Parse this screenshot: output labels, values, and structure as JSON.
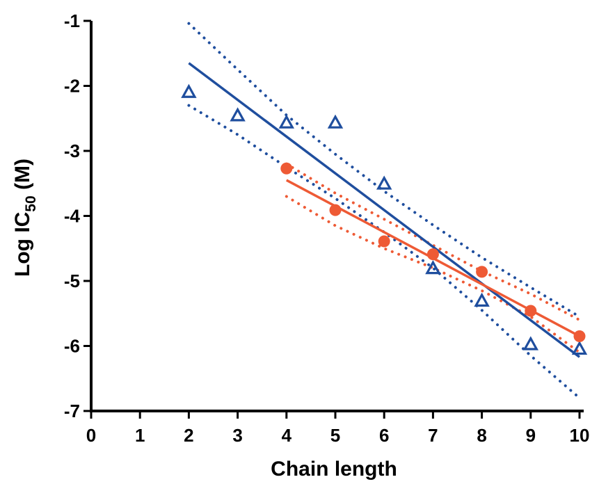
{
  "chart_data": {
    "type": "scatter",
    "xlabel": "Chain length",
    "ylabel": {
      "main": "Log IC",
      "sub": "50",
      "unit": " (M)"
    },
    "xlim": [
      0,
      10
    ],
    "ylim": [
      -7,
      -1
    ],
    "xticks": [
      0,
      1,
      2,
      3,
      4,
      5,
      6,
      7,
      8,
      9,
      10
    ],
    "yticks": [
      -7,
      -6,
      -5,
      -4,
      -3,
      -2,
      -1
    ],
    "grid": false,
    "legend": "none",
    "series": [
      {
        "marker": "open-triangle",
        "color": "#1f4e9e",
        "points": [
          [
            2,
            -2.1
          ],
          [
            3,
            -2.46
          ],
          [
            4,
            -2.57
          ],
          [
            5,
            -2.57
          ],
          [
            6,
            -3.51
          ],
          [
            7,
            -4.81
          ],
          [
            8,
            -5.31
          ],
          [
            9,
            -5.98
          ],
          [
            10,
            -6.05
          ]
        ],
        "fit": {
          "x": [
            2,
            10
          ],
          "y": [
            -1.65,
            -6.17
          ]
        },
        "ci_upper": {
          "x": [
            2,
            3,
            4,
            5,
            6,
            7,
            8,
            9,
            10
          ],
          "y": [
            -1.04,
            -1.75,
            -2.45,
            -3.05,
            -3.62,
            -4.14,
            -4.64,
            -5.1,
            -5.55
          ]
        },
        "ci_lower": {
          "x": [
            2,
            3,
            4,
            5,
            6,
            7,
            8,
            9,
            10
          ],
          "y": [
            -2.3,
            -2.75,
            -3.25,
            -3.73,
            -4.25,
            -4.8,
            -5.45,
            -6.15,
            -6.8
          ]
        }
      },
      {
        "marker": "filled-circle",
        "color": "#ee5a35",
        "points": [
          [
            4,
            -3.27
          ],
          [
            5,
            -3.91
          ],
          [
            6,
            -4.39
          ],
          [
            7,
            -4.59
          ],
          [
            8,
            -4.86
          ],
          [
            9,
            -5.46
          ],
          [
            10,
            -5.85
          ]
        ],
        "fit": {
          "x": [
            4,
            10
          ],
          "y": [
            -3.45,
            -5.85
          ]
        },
        "ci_upper": {
          "x": [
            4,
            5,
            6,
            7,
            8,
            9,
            10
          ],
          "y": [
            -3.2,
            -3.65,
            -4.05,
            -4.45,
            -4.85,
            -5.2,
            -5.6
          ]
        },
        "ci_lower": {
          "x": [
            4,
            5,
            6,
            7,
            8,
            9,
            10
          ],
          "y": [
            -3.7,
            -4.15,
            -4.5,
            -4.8,
            -5.15,
            -5.55,
            -6.1
          ]
        }
      }
    ]
  }
}
